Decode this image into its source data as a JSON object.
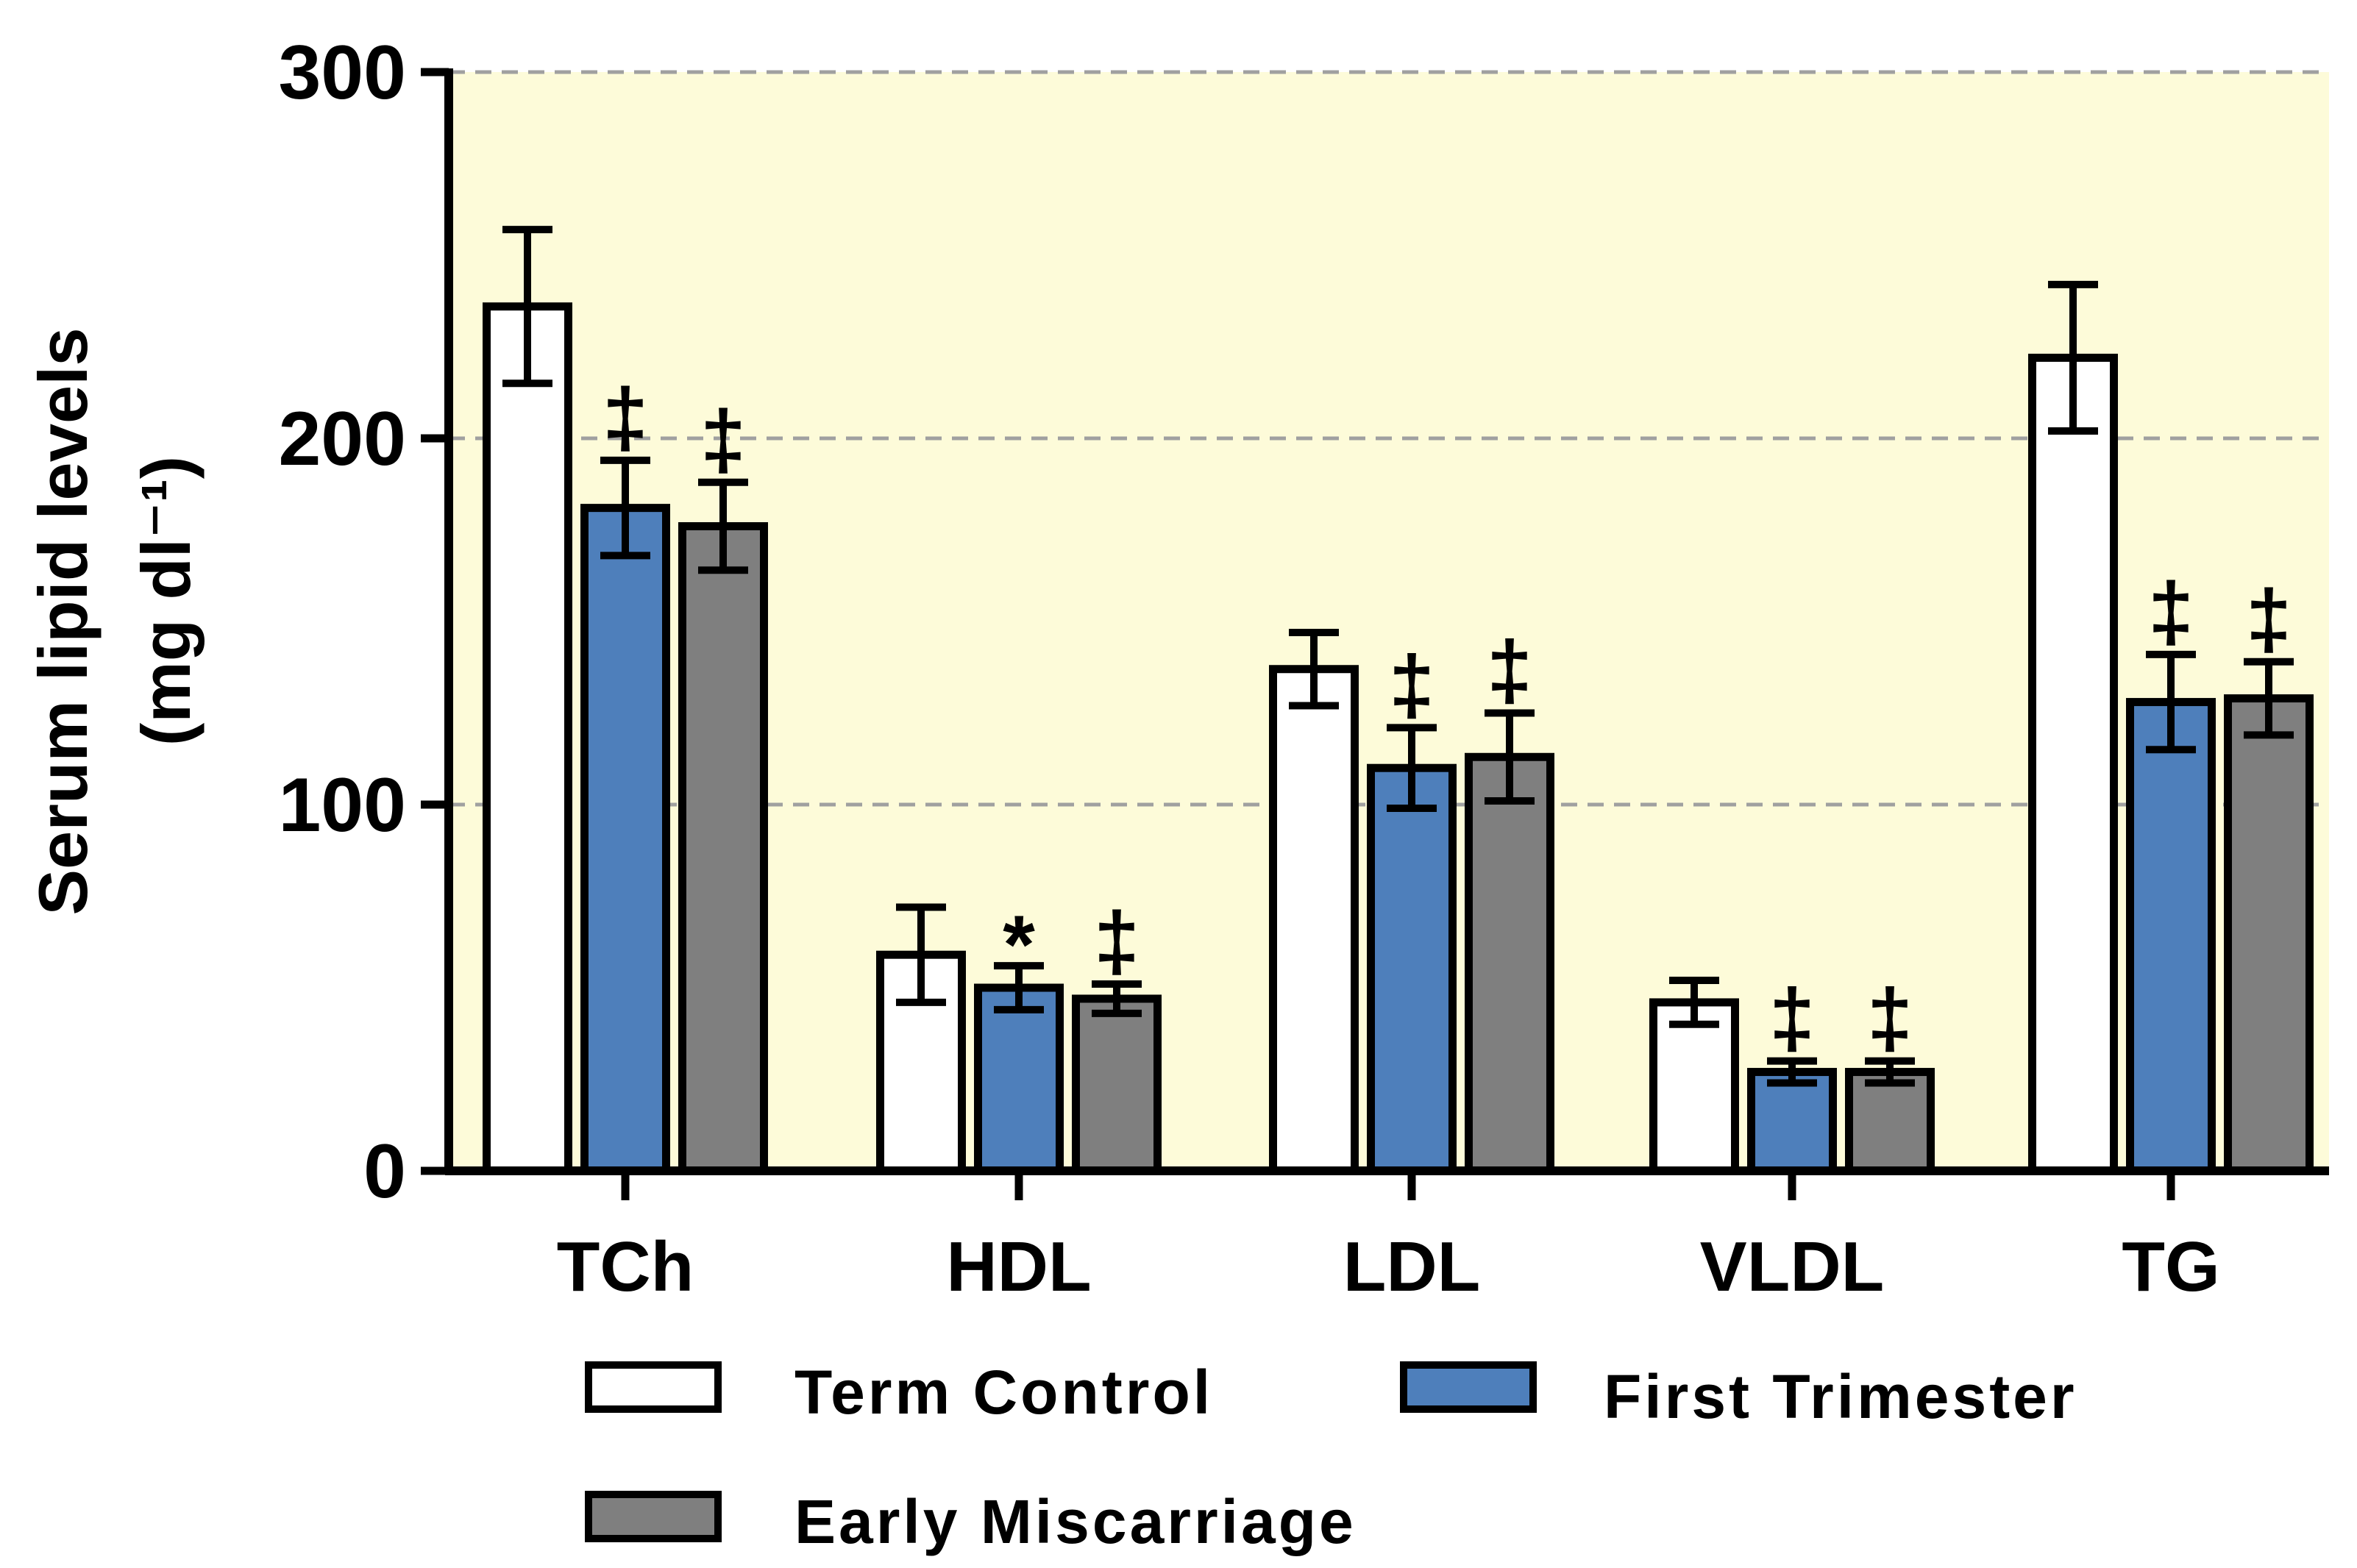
{
  "chart_data": {
    "type": "bar",
    "ylabel": "Serum lipid levels",
    "ylabel_unit": "(mg dl⁻¹)",
    "ylim": [
      0,
      300
    ],
    "yticks": [
      "0",
      "100",
      "200",
      "300"
    ],
    "grid": "horizontal dashed",
    "categories": [
      "TCh",
      "HDL",
      "LDL",
      "VLDL",
      "TG"
    ],
    "series": [
      {
        "name": "Term Control",
        "color": "#ffffff",
        "values": [
          236,
          59,
          137,
          46,
          222
        ],
        "err": [
          21,
          13,
          10,
          6,
          20
        ],
        "sig": [
          "",
          "",
          "",
          "",
          ""
        ]
      },
      {
        "name": "First Trimester",
        "color": "#4e7fbb",
        "values": [
          181,
          50,
          110,
          27,
          128
        ],
        "err": [
          13,
          6,
          11,
          3,
          13
        ],
        "sig": [
          "‡",
          "*",
          "‡",
          "‡",
          "‡"
        ]
      },
      {
        "name": "Early Miscarriage",
        "color": "#7f7f7f",
        "values": [
          176,
          47,
          113,
          27,
          129
        ],
        "err": [
          12,
          4,
          12,
          3,
          10
        ],
        "sig": [
          "‡",
          "‡",
          "‡",
          "‡",
          "‡"
        ]
      }
    ],
    "plot_background": "#fdfbd9",
    "legend": "bottom"
  }
}
